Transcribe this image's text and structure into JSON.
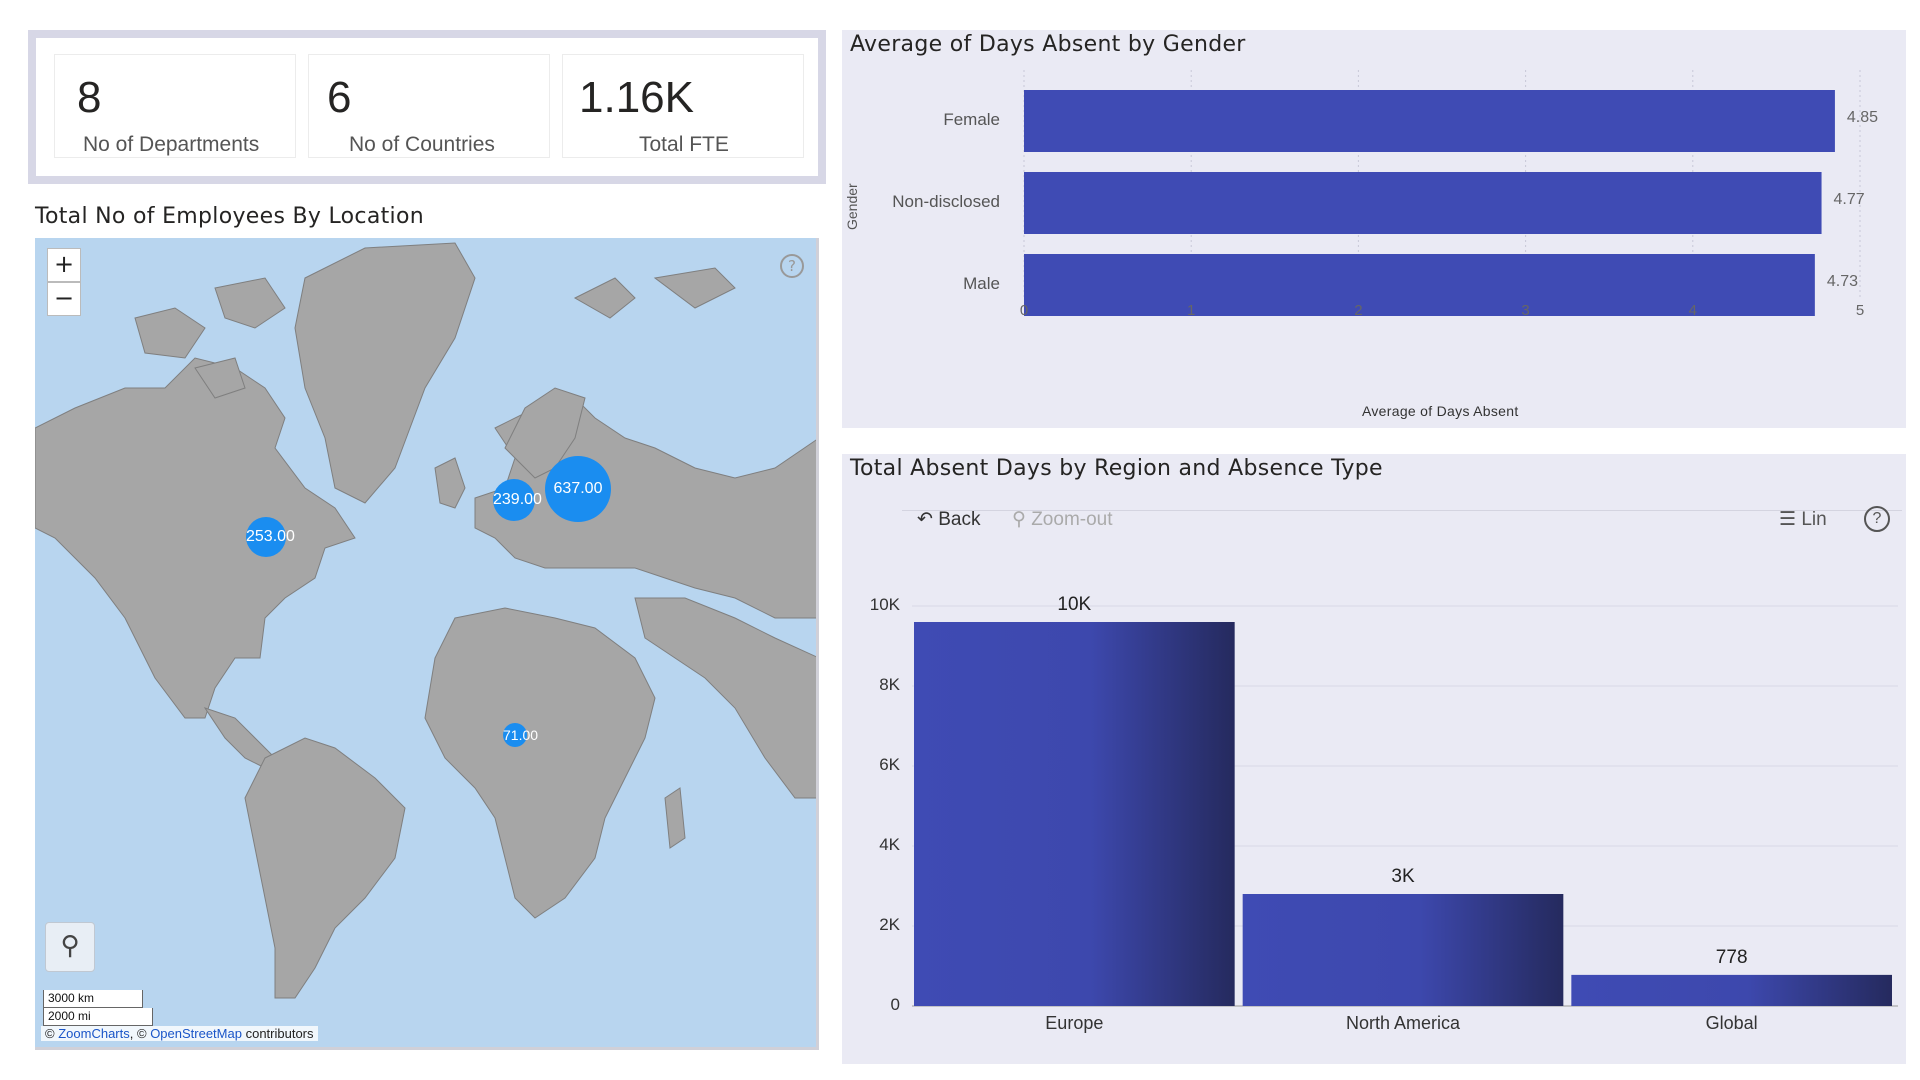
{
  "kpis": [
    {
      "value": "8",
      "label": "No of Departments"
    },
    {
      "value": "6",
      "label": "No of Countries"
    },
    {
      "value": "1.16K",
      "label": "Total FTE"
    }
  ],
  "map": {
    "title": "Total No of Employees By Location",
    "zoom_in": "+",
    "zoom_out": "−",
    "help": "?",
    "scale_km": "3000 km",
    "scale_mi": "2000 mi",
    "attribution_prefix": "©",
    "attribution_zc": "ZoomCharts",
    "attribution_mid": ", ©",
    "attribution_osm": "OpenStreetMap",
    "attribution_suffix": "contributors",
    "bubbles": [
      {
        "label": "637.00",
        "value": 637
      },
      {
        "label": "239.00",
        "value": 239
      },
      {
        "label": "253.00",
        "value": 253
      },
      {
        "label": "71.00",
        "value": 71
      }
    ],
    "colors": {
      "water": "#b8d5ef",
      "land": "#a6a6a6",
      "bubble": "#1a8df0"
    }
  },
  "gender_chart": {
    "title": "Average of Days Absent by Gender",
    "y_axis_title": "Gender",
    "x_axis_title": "Average of Days Absent",
    "bar_color": "#3f4bb4"
  },
  "region_chart": {
    "title": "Total Absent Days by Region and Absence Type",
    "toolbar": {
      "back": "Back",
      "zoom_out": "Zoom-out",
      "lin": "Lin",
      "help": "?"
    },
    "bar_color_start": "#3f4bb4",
    "bar_color_end": "#252a5e"
  },
  "chart_data": [
    {
      "type": "bar",
      "orientation": "horizontal",
      "title": "Average of Days Absent by Gender",
      "xlabel": "Average of Days Absent",
      "ylabel": "Gender",
      "categories": [
        "Female",
        "Non-disclosed",
        "Male"
      ],
      "values": [
        4.85,
        4.77,
        4.73
      ],
      "value_labels": [
        "4.85",
        "4.77",
        "4.73"
      ],
      "xlim": [
        0,
        5
      ],
      "ticks": [
        "0",
        "1",
        "2",
        "3",
        "4",
        "5"
      ],
      "grid": true
    },
    {
      "type": "bar",
      "title": "Total Absent Days by Region and Absence Type",
      "categories": [
        "Europe",
        "North America",
        "Global"
      ],
      "values": [
        9600,
        2800,
        778
      ],
      "value_labels": [
        "10K",
        "3K",
        "778"
      ],
      "ylim": [
        0,
        10000
      ],
      "ticks": [
        "0",
        "2K",
        "4K",
        "6K",
        "8K",
        "10K"
      ],
      "grid": true
    }
  ]
}
